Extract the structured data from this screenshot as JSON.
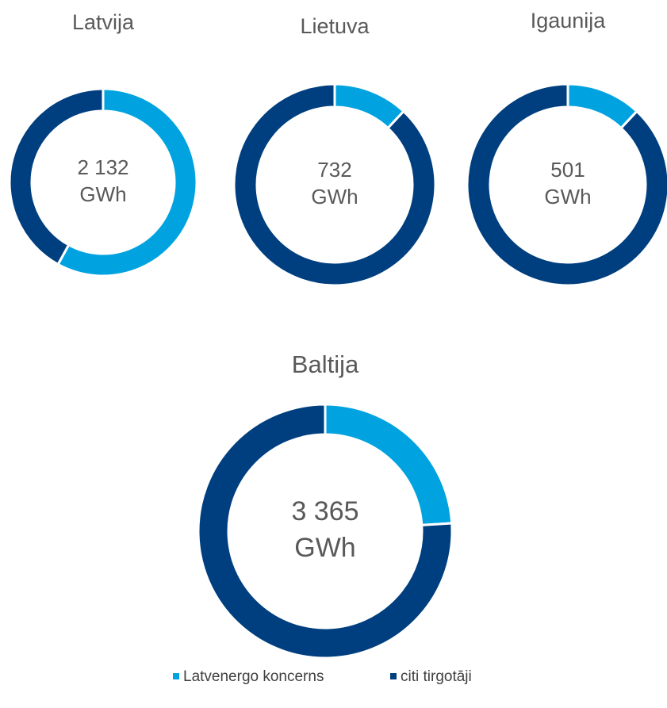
{
  "legend": {
    "labels": [
      "Latvenergo koncerns",
      "citi tirgotāji"
    ],
    "colors": [
      "#00a3e0",
      "#003f7f"
    ]
  },
  "chart_data": [
    {
      "type": "pie",
      "title": "Latvija",
      "values": [
        58,
        42
      ],
      "annotation": [
        "2 132",
        "GWh"
      ]
    },
    {
      "type": "pie",
      "title": "Lietuva",
      "values": [
        12,
        88
      ],
      "annotation": [
        "732",
        "GWh"
      ]
    },
    {
      "type": "pie",
      "title": "Igaunija",
      "values": [
        12,
        88
      ],
      "annotation": [
        "501",
        "GWh"
      ]
    },
    {
      "type": "pie",
      "title": "Baltija",
      "values": [
        24,
        76
      ],
      "annotation": [
        "3 365",
        "GWh"
      ]
    }
  ]
}
